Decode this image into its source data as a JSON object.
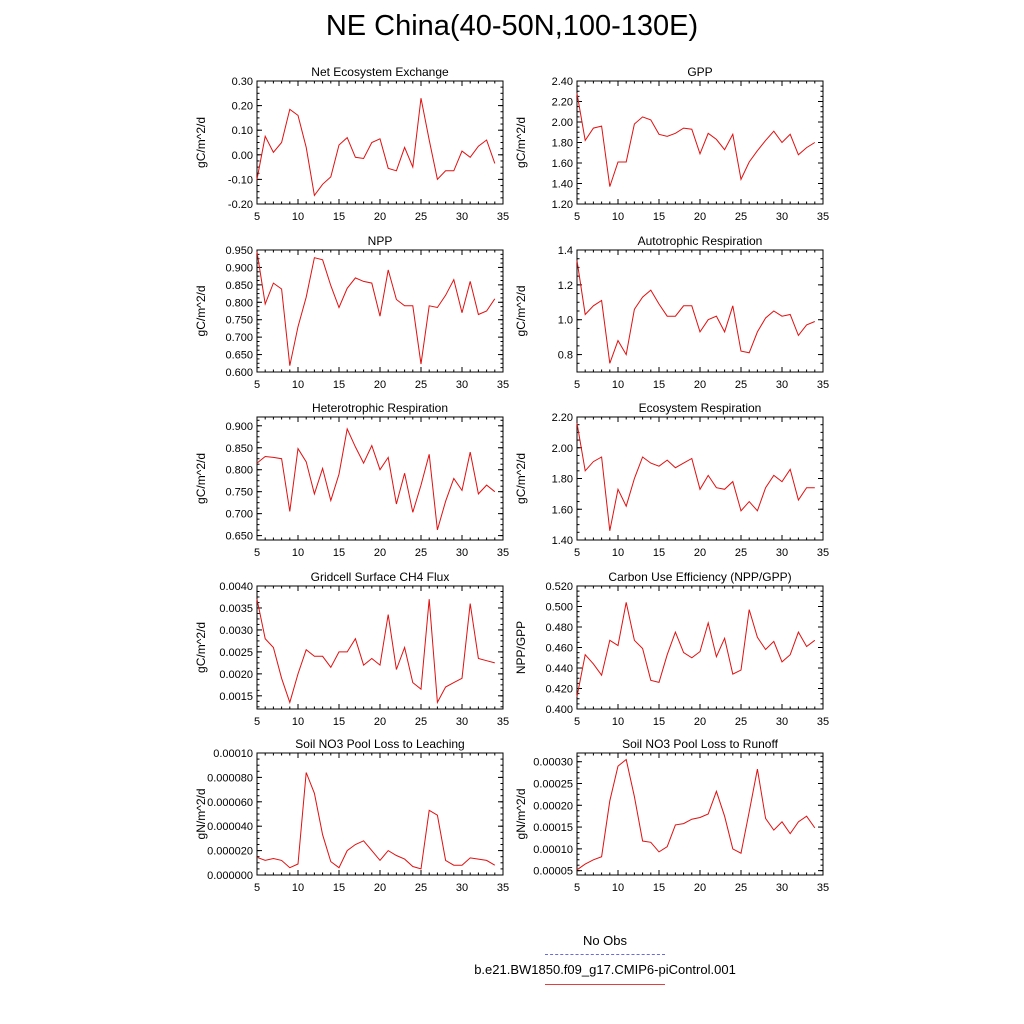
{
  "title": "NE China(40-50N,100-130E)",
  "legend": {
    "obs_label": "No Obs",
    "case_label": "b.e21.BW1850.f09_g17.CMIP6-piControl.001",
    "obs_color": "#6a6adf",
    "case_color": "#e04040"
  },
  "line_color": "#e01010",
  "chart_data": [
    {
      "type": "line",
      "title": "Net Ecosystem Exchange",
      "ylabel": "gC/m^2/d",
      "xlim": [
        5,
        35
      ],
      "xticks": [
        "5",
        "10",
        "15",
        "20",
        "25",
        "30",
        "35"
      ],
      "ylim": [
        -0.2,
        0.3
      ],
      "yticks": [
        "-0.20",
        "-0.10",
        "0.00",
        "0.10",
        "0.20",
        "0.30"
      ],
      "x": [
        5,
        6,
        7,
        8,
        9,
        10,
        11,
        12,
        13,
        14,
        15,
        16,
        17,
        18,
        19,
        20,
        21,
        22,
        23,
        24,
        25,
        26,
        27,
        28,
        29,
        30,
        31,
        32,
        33,
        34
      ],
      "y": [
        -0.1,
        0.075,
        0.01,
        0.05,
        0.185,
        0.16,
        0.03,
        -0.165,
        -0.12,
        -0.09,
        0.04,
        0.07,
        -0.01,
        -0.015,
        0.05,
        0.065,
        -0.055,
        -0.065,
        0.03,
        -0.05,
        0.23,
        0.06,
        -0.1,
        -0.065,
        -0.065,
        0.015,
        -0.01,
        0.035,
        0.06,
        -0.035
      ]
    },
    {
      "type": "line",
      "title": "GPP",
      "ylabel": "gC/m^2/d",
      "xlim": [
        5,
        35
      ],
      "xticks": [
        "5",
        "10",
        "15",
        "20",
        "25",
        "30",
        "35"
      ],
      "ylim": [
        1.2,
        2.4
      ],
      "yticks": [
        "1.20",
        "1.40",
        "1.60",
        "1.80",
        "2.00",
        "2.20",
        "2.40"
      ],
      "x": [
        5,
        6,
        7,
        8,
        9,
        10,
        11,
        12,
        13,
        14,
        15,
        16,
        17,
        18,
        19,
        20,
        21,
        22,
        23,
        24,
        25,
        26,
        27,
        28,
        29,
        30,
        31,
        32,
        33,
        34
      ],
      "y": [
        2.28,
        1.82,
        1.94,
        1.96,
        1.37,
        1.61,
        1.61,
        1.98,
        2.05,
        2.02,
        1.88,
        1.86,
        1.89,
        1.94,
        1.93,
        1.69,
        1.89,
        1.83,
        1.73,
        1.88,
        1.44,
        1.61,
        1.72,
        1.82,
        1.91,
        1.8,
        1.88,
        1.68,
        1.75,
        1.8
      ]
    },
    {
      "type": "line",
      "title": "NPP",
      "ylabel": "gC/m^2/d",
      "xlim": [
        5,
        35
      ],
      "xticks": [
        "5",
        "10",
        "15",
        "20",
        "25",
        "30",
        "35"
      ],
      "ylim": [
        0.6,
        0.95
      ],
      "yticks": [
        "0.600",
        "0.650",
        "0.700",
        "0.750",
        "0.800",
        "0.850",
        "0.900",
        "0.950"
      ],
      "x": [
        5,
        6,
        7,
        8,
        9,
        10,
        11,
        12,
        13,
        14,
        15,
        16,
        17,
        18,
        19,
        20,
        21,
        22,
        23,
        24,
        25,
        26,
        27,
        28,
        29,
        30,
        31,
        32,
        33,
        34
      ],
      "y": [
        0.945,
        0.795,
        0.855,
        0.838,
        0.618,
        0.73,
        0.815,
        0.928,
        0.922,
        0.848,
        0.785,
        0.84,
        0.87,
        0.86,
        0.855,
        0.76,
        0.893,
        0.808,
        0.79,
        0.79,
        0.623,
        0.79,
        0.785,
        0.82,
        0.865,
        0.77,
        0.86,
        0.765,
        0.775,
        0.81
      ]
    },
    {
      "type": "line",
      "title": "Autotrophic Respiration",
      "ylabel": "gC/m^2/d",
      "xlim": [
        5,
        35
      ],
      "xticks": [
        "5",
        "10",
        "15",
        "20",
        "25",
        "30",
        "35"
      ],
      "ylim": [
        0.7,
        1.4
      ],
      "yticks": [
        "0.8",
        "1.0",
        "1.2",
        "1.4"
      ],
      "x": [
        5,
        6,
        7,
        8,
        9,
        10,
        11,
        12,
        13,
        14,
        15,
        16,
        17,
        18,
        19,
        20,
        21,
        22,
        23,
        24,
        25,
        26,
        27,
        28,
        29,
        30,
        31,
        32,
        33,
        34
      ],
      "y": [
        1.34,
        1.03,
        1.08,
        1.11,
        0.75,
        0.88,
        0.8,
        1.06,
        1.13,
        1.17,
        1.09,
        1.02,
        1.02,
        1.08,
        1.08,
        0.93,
        1.0,
        1.02,
        0.93,
        1.08,
        0.82,
        0.81,
        0.93,
        1.01,
        1.05,
        1.02,
        1.03,
        0.91,
        0.97,
        0.99
      ]
    },
    {
      "type": "line",
      "title": "Heterotrophic Respiration",
      "ylabel": "gC/m^2/d",
      "xlim": [
        5,
        35
      ],
      "xticks": [
        "5",
        "10",
        "15",
        "20",
        "25",
        "30",
        "35"
      ],
      "ylim": [
        0.64,
        0.92
      ],
      "yticks": [
        "0.650",
        "0.700",
        "0.750",
        "0.800",
        "0.850",
        "0.900"
      ],
      "x": [
        5,
        6,
        7,
        8,
        9,
        10,
        11,
        12,
        13,
        14,
        15,
        16,
        17,
        18,
        19,
        20,
        21,
        22,
        23,
        24,
        25,
        26,
        27,
        28,
        29,
        30,
        31,
        32,
        33,
        34
      ],
      "y": [
        0.815,
        0.83,
        0.828,
        0.825,
        0.705,
        0.848,
        0.818,
        0.745,
        0.803,
        0.73,
        0.79,
        0.893,
        0.852,
        0.815,
        0.855,
        0.8,
        0.828,
        0.722,
        0.792,
        0.703,
        0.765,
        0.835,
        0.663,
        0.728,
        0.78,
        0.753,
        0.84,
        0.745,
        0.765,
        0.75
      ]
    },
    {
      "type": "line",
      "title": "Ecosystem Respiration",
      "ylabel": "gC/m^2/d",
      "xlim": [
        5,
        35
      ],
      "xticks": [
        "5",
        "10",
        "15",
        "20",
        "25",
        "30",
        "35"
      ],
      "ylim": [
        1.4,
        2.2
      ],
      "yticks": [
        "1.40",
        "1.60",
        "1.80",
        "2.00",
        "2.20"
      ],
      "x": [
        5,
        6,
        7,
        8,
        9,
        10,
        11,
        12,
        13,
        14,
        15,
        16,
        17,
        18,
        19,
        20,
        21,
        22,
        23,
        24,
        25,
        26,
        27,
        28,
        29,
        30,
        31,
        32,
        33,
        34
      ],
      "y": [
        2.16,
        1.85,
        1.91,
        1.94,
        1.46,
        1.73,
        1.62,
        1.8,
        1.94,
        1.9,
        1.88,
        1.92,
        1.87,
        1.9,
        1.93,
        1.73,
        1.82,
        1.74,
        1.73,
        1.78,
        1.59,
        1.65,
        1.59,
        1.74,
        1.82,
        1.78,
        1.86,
        1.66,
        1.74,
        1.74
      ]
    },
    {
      "type": "line",
      "title": "Gridcell Surface CH4 Flux",
      "ylabel": "gC/m^2/d",
      "xlim": [
        5,
        35
      ],
      "xticks": [
        "5",
        "10",
        "15",
        "20",
        "25",
        "30",
        "35"
      ],
      "ylim": [
        0.0012,
        0.004
      ],
      "yticks": [
        "0.0015",
        "0.0020",
        "0.0025",
        "0.0030",
        "0.0035",
        "0.0040"
      ],
      "x": [
        5,
        6,
        7,
        8,
        9,
        10,
        11,
        12,
        13,
        14,
        15,
        16,
        17,
        18,
        19,
        20,
        21,
        22,
        23,
        24,
        25,
        26,
        27,
        28,
        29,
        30,
        31,
        32,
        33,
        34
      ],
      "y": [
        0.0037,
        0.0028,
        0.0026,
        0.0019,
        0.00135,
        0.002,
        0.00255,
        0.0024,
        0.0024,
        0.00215,
        0.0025,
        0.0025,
        0.0028,
        0.0022,
        0.00235,
        0.0022,
        0.00335,
        0.0021,
        0.0026,
        0.0018,
        0.00165,
        0.0037,
        0.00135,
        0.0017,
        0.0018,
        0.0019,
        0.0036,
        0.00235,
        0.0023,
        0.00225
      ]
    },
    {
      "type": "line",
      "title": "Carbon Use Efficiency (NPP/GPP)",
      "ylabel": "NPP/GPP",
      "xlim": [
        5,
        35
      ],
      "xticks": [
        "5",
        "10",
        "15",
        "20",
        "25",
        "30",
        "35"
      ],
      "ylim": [
        0.4,
        0.52
      ],
      "yticks": [
        "0.400",
        "0.420",
        "0.440",
        "0.460",
        "0.480",
        "0.500",
        "0.520"
      ],
      "x": [
        5,
        6,
        7,
        8,
        9,
        10,
        11,
        12,
        13,
        14,
        15,
        16,
        17,
        18,
        19,
        20,
        21,
        22,
        23,
        24,
        25,
        26,
        27,
        28,
        29,
        30,
        31,
        32,
        33,
        34
      ],
      "y": [
        0.412,
        0.453,
        0.444,
        0.433,
        0.467,
        0.462,
        0.504,
        0.467,
        0.459,
        0.428,
        0.426,
        0.453,
        0.475,
        0.455,
        0.45,
        0.456,
        0.484,
        0.451,
        0.469,
        0.434,
        0.438,
        0.497,
        0.47,
        0.458,
        0.466,
        0.446,
        0.453,
        0.475,
        0.461,
        0.467
      ]
    },
    {
      "type": "line",
      "title": "Soil NO3 Pool Loss to Leaching",
      "ylabel": "gN/m^2/d",
      "xlim": [
        5,
        35
      ],
      "xticks": [
        "5",
        "10",
        "15",
        "20",
        "25",
        "30",
        "35"
      ],
      "ylim": [
        0,
        0.0001
      ],
      "yticks": [
        "0.000000",
        "0.000020",
        "0.000040",
        "0.000060",
        "0.000080",
        "0.00010"
      ],
      "x": [
        5,
        6,
        7,
        8,
        9,
        10,
        11,
        12,
        13,
        14,
        15,
        16,
        17,
        18,
        19,
        20,
        21,
        22,
        23,
        24,
        25,
        26,
        27,
        28,
        29,
        30,
        31,
        32,
        33,
        34
      ],
      "y": [
        1.45e-05,
        1.2e-05,
        1.35e-05,
        1.2e-05,
        6e-06,
        9e-06,
        8.4e-05,
        6.7e-05,
        3.3e-05,
        1.1e-05,
        6e-06,
        2e-05,
        2.5e-05,
        2.8e-05,
        2e-05,
        1.2e-05,
        2e-05,
        1.6e-05,
        1.3e-05,
        7e-06,
        5e-06,
        5.3e-05,
        4.9e-05,
        1.2e-05,
        8e-06,
        8e-06,
        1.4e-05,
        1.3e-05,
        1.2e-05,
        8e-06
      ]
    },
    {
      "type": "line",
      "title": "Soil NO3 Pool Loss to Runoff",
      "ylabel": "gN/m^2/d",
      "xlim": [
        5,
        35
      ],
      "xticks": [
        "5",
        "10",
        "15",
        "20",
        "25",
        "30",
        "35"
      ],
      "ylim": [
        4e-05,
        0.00032
      ],
      "yticks": [
        "0.00005",
        "0.00010",
        "0.00015",
        "0.00020",
        "0.00025",
        "0.00030"
      ],
      "x": [
        5,
        6,
        7,
        8,
        9,
        10,
        11,
        12,
        13,
        14,
        15,
        16,
        17,
        18,
        19,
        20,
        21,
        22,
        23,
        24,
        25,
        26,
        27,
        28,
        29,
        30,
        31,
        32,
        33,
        34
      ],
      "y": [
        5.2e-05,
        6.5e-05,
        7.5e-05,
        8.2e-05,
        0.00021,
        0.00029,
        0.000305,
        0.00022,
        0.000118,
        0.000115,
        9.3e-05,
        0.000105,
        0.000155,
        0.000158,
        0.000168,
        0.000172,
        0.00018,
        0.000232,
        0.000175,
        0.0001,
        9e-05,
        0.000185,
        0.000283,
        0.00017,
        0.000143,
        0.000162,
        0.000135,
        0.000162,
        0.000175,
        0.000148
      ]
    }
  ]
}
